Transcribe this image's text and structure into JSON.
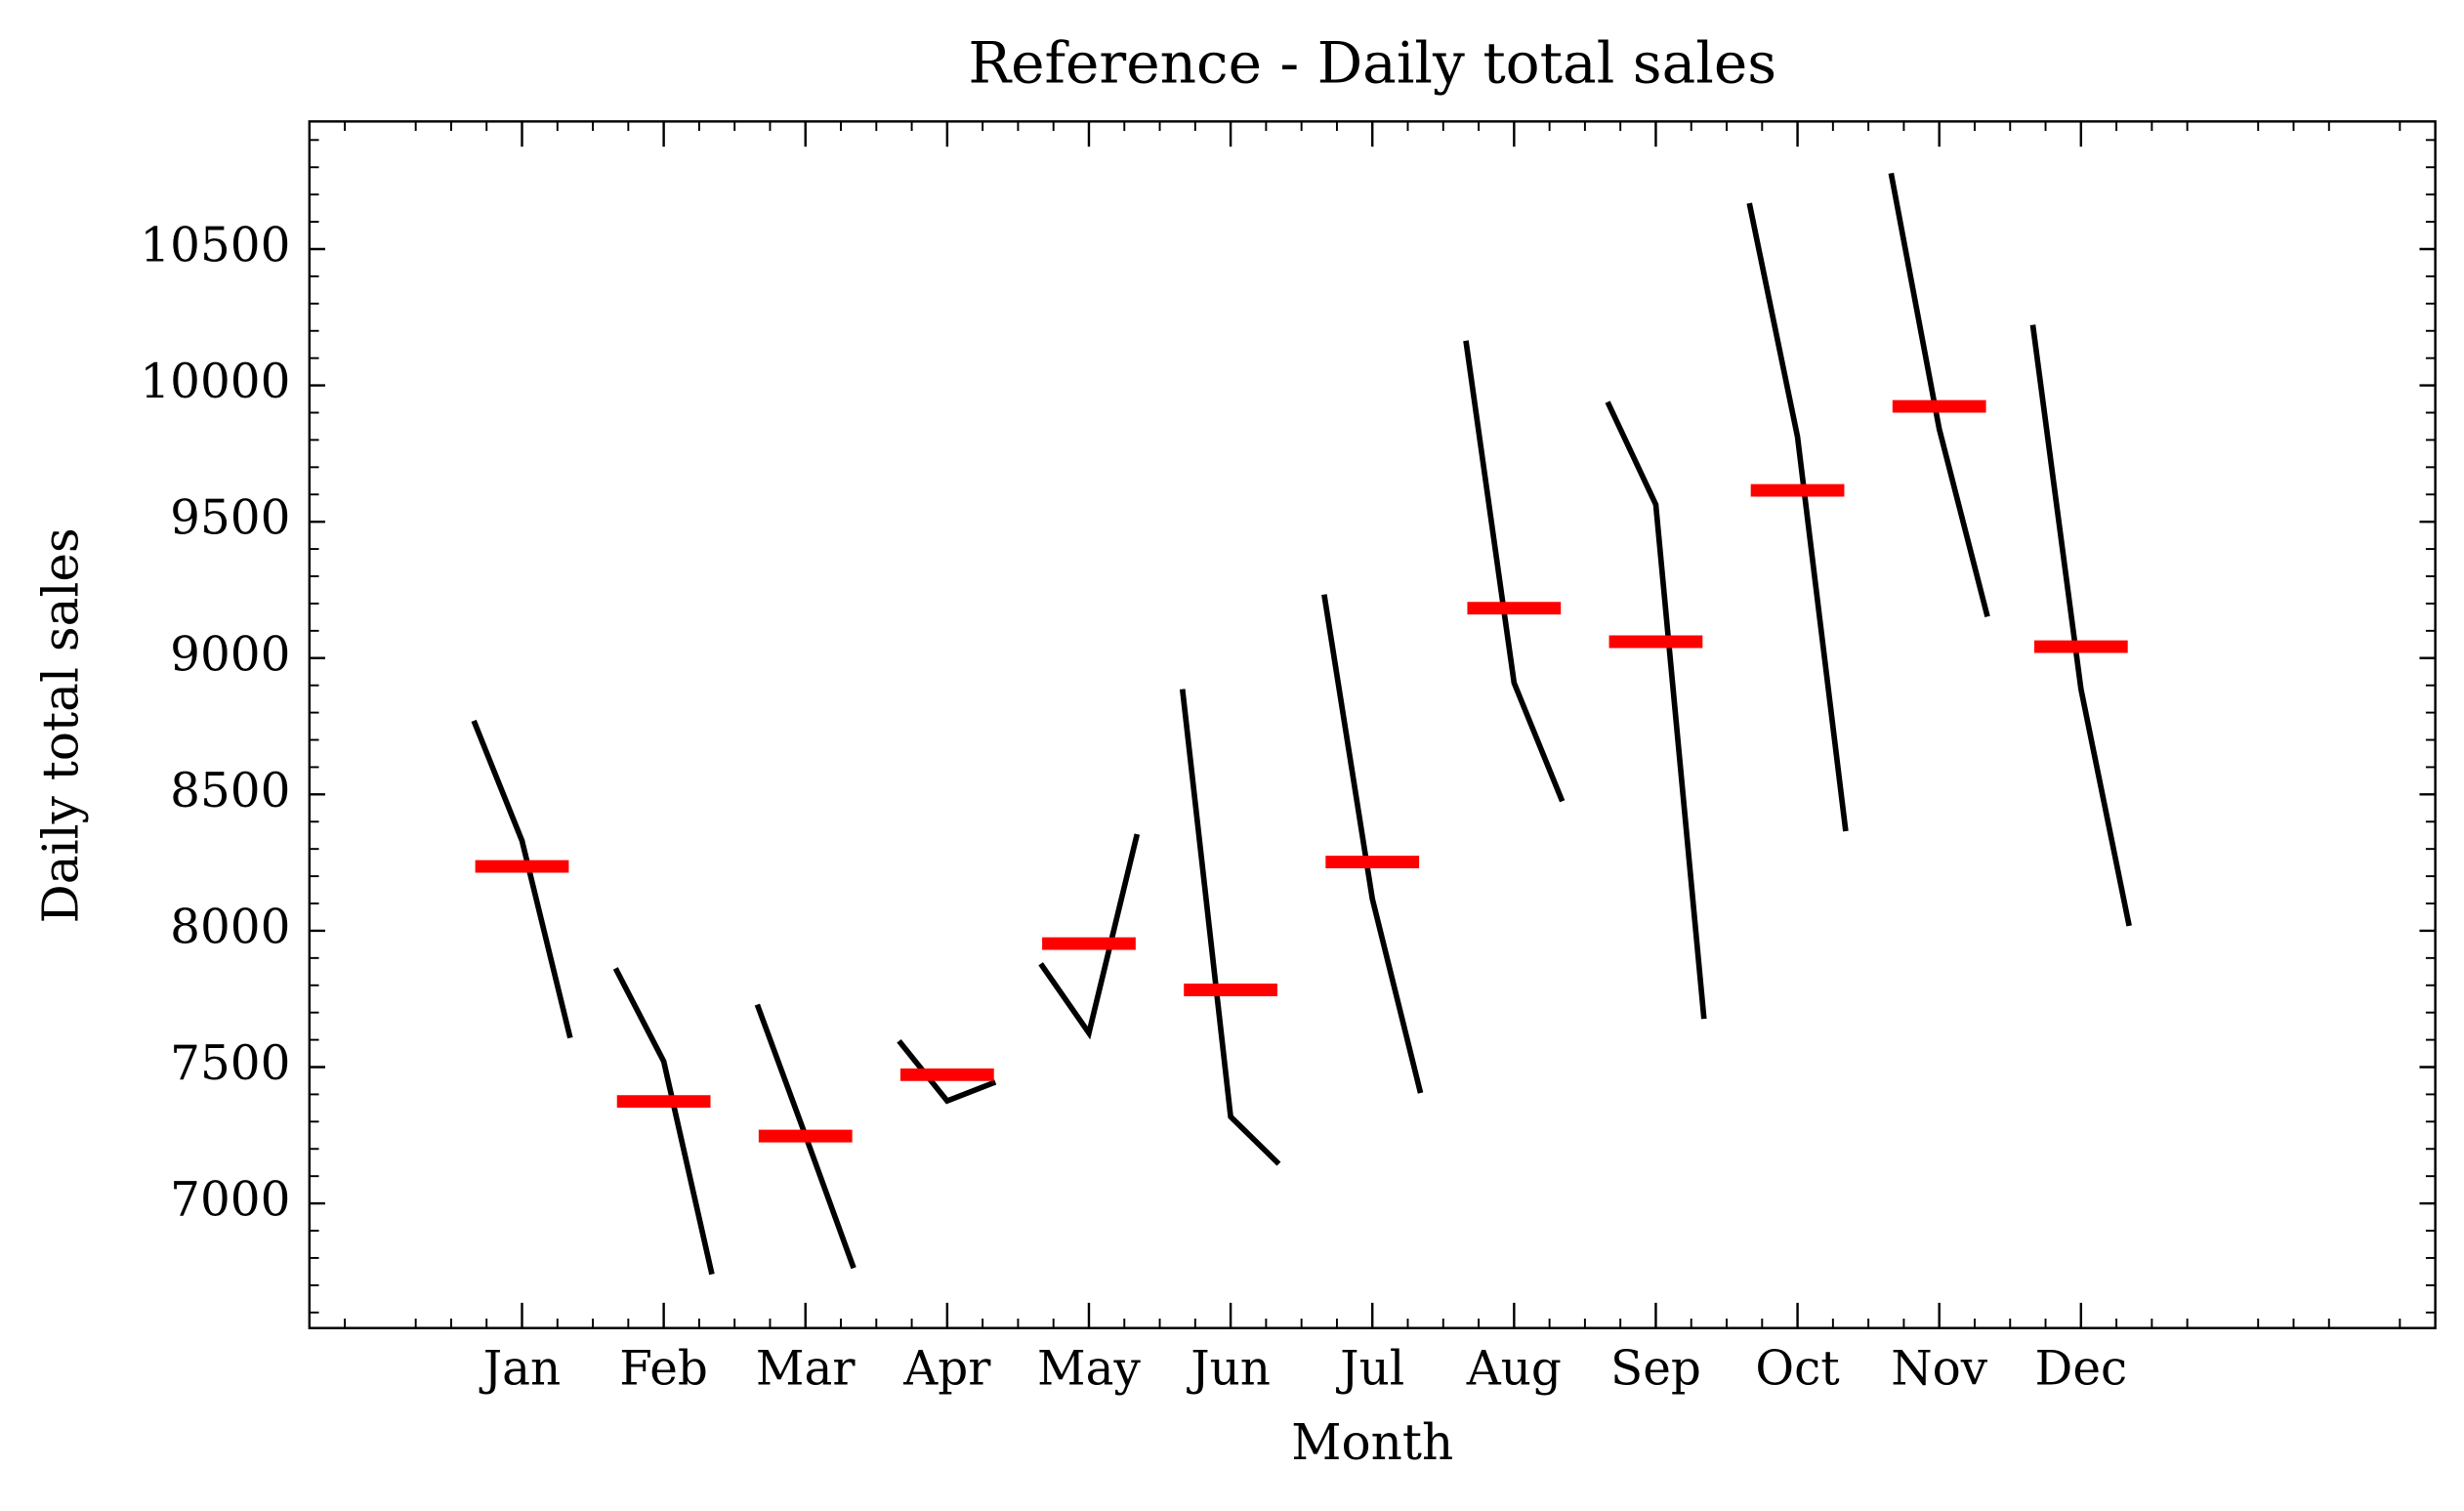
{
  "chart_data": {
    "type": "month_plot",
    "title": "Reference - Daily total sales",
    "xlabel": "Month",
    "ylabel": "Daily total sales",
    "categories": [
      "Jan",
      "Feb",
      "Mar",
      "Apr",
      "May",
      "Jun",
      "Jul",
      "Aug",
      "Sep",
      "Oct",
      "Nov",
      "Dec"
    ],
    "values": [
      [
        8770,
        8330,
        7607
      ],
      [
        7862,
        7521,
        6740
      ],
      [
        7729,
        7249,
        6763
      ],
      [
        7596,
        7376,
        7445
      ],
      [
        7879,
        7625,
        8354
      ],
      [
        8886,
        7318,
        7145
      ],
      [
        9233,
        8117,
        7405
      ],
      [
        10164,
        8909,
        8475
      ],
      [
        9939,
        9563,
        7677
      ],
      [
        10668,
        9811,
        8365
      ],
      [
        10778,
        9840,
        9152
      ],
      [
        10222,
        8886,
        8018
      ]
    ],
    "means": [
      8236,
      7374,
      7247,
      7472,
      7953,
      7783,
      8252,
      9183,
      9060,
      9615,
      9923,
      9042
    ],
    "line_color": "#000000",
    "mean_color": "#ff0000",
    "ylim": [
      6543,
      10968
    ],
    "yticks": [
      7000,
      7500,
      8000,
      8500,
      9000,
      9500,
      10000,
      10500
    ]
  }
}
